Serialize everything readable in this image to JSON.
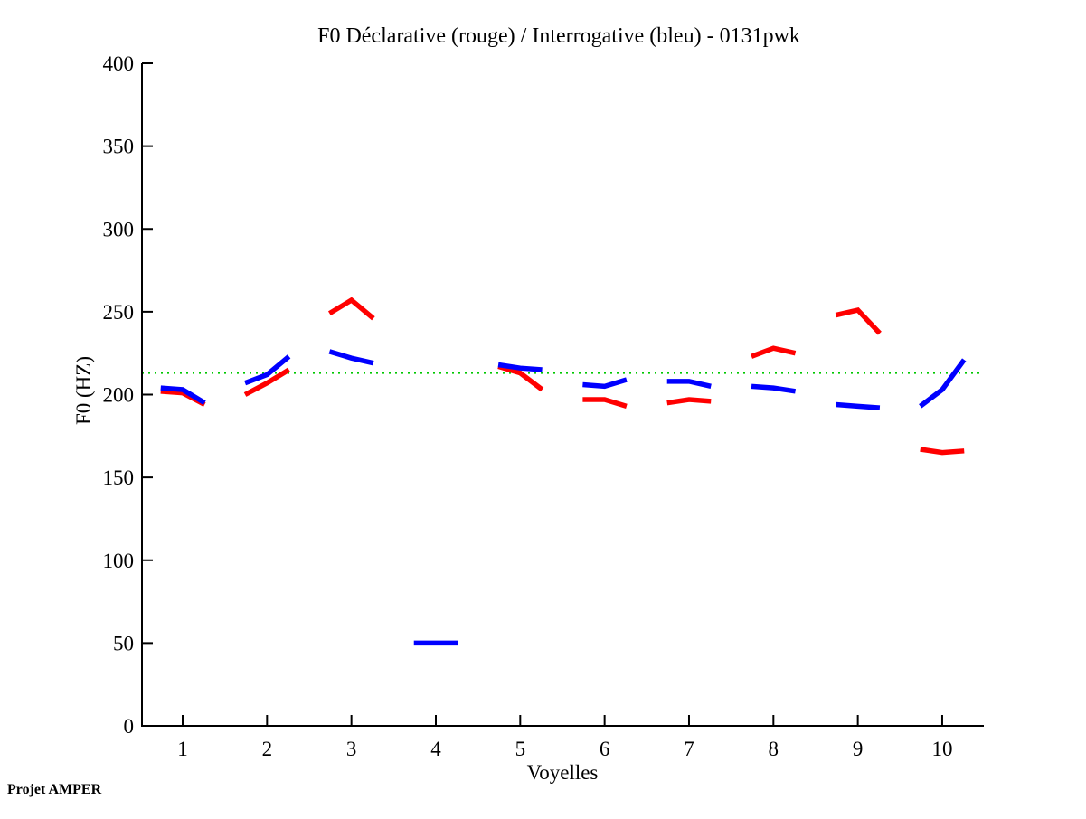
{
  "title": "F0 Déclarative (rouge) / Interrogative (bleu) - 0131pwk",
  "footer": "Projet AMPER",
  "colors": {
    "declarative": "#ff0000",
    "interrogative": "#0000ff",
    "reference_line": "#00c800",
    "axis": "#000000",
    "background": "#ffffff"
  },
  "chart_data": {
    "type": "line",
    "title": "F0 Déclarative (rouge) / Interrogative (bleu) - 0131pwk",
    "xlabel": "Voyelles",
    "ylabel": "F0 (HZ)",
    "xlim": [
      0.5,
      10.5
    ],
    "ylim": [
      0,
      400
    ],
    "x_ticks": [
      1,
      2,
      3,
      4,
      5,
      6,
      7,
      8,
      9,
      10
    ],
    "y_ticks": [
      0,
      50,
      100,
      150,
      200,
      250,
      300,
      350,
      400
    ],
    "grid": false,
    "legend_position": "in-title",
    "points_per_vowel": 3,
    "reference_line": {
      "value_hz": 213,
      "style": "dotted",
      "color": "#00c800"
    },
    "series": [
      {
        "name": "Déclarative",
        "legend_hint": "rouge",
        "color": "#ff0000",
        "values_by_vowel": [
          [
            202,
            201,
            194
          ],
          [
            200,
            207,
            215
          ],
          [
            249,
            257,
            246
          ],
          null,
          [
            217,
            213,
            203
          ],
          [
            197,
            197,
            193
          ],
          [
            195,
            197,
            196
          ],
          [
            223,
            228,
            225
          ],
          [
            248,
            251,
            237
          ],
          [
            167,
            165,
            166
          ]
        ]
      },
      {
        "name": "Interrogative",
        "legend_hint": "bleu",
        "color": "#0000ff",
        "values_by_vowel": [
          [
            204,
            203,
            195
          ],
          [
            207,
            212,
            223
          ],
          [
            226,
            222,
            219
          ],
          [
            50,
            50,
            50
          ],
          [
            218,
            216,
            215
          ],
          [
            206,
            205,
            209
          ],
          [
            208,
            208,
            205
          ],
          [
            205,
            204,
            202
          ],
          [
            194,
            193,
            192
          ],
          [
            193,
            203,
            221
          ]
        ]
      }
    ]
  }
}
